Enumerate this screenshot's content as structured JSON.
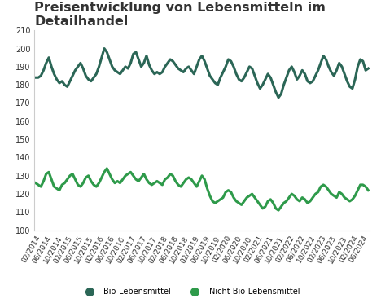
{
  "chart_data": {
    "type": "line",
    "title": "Preisentwicklung von Lebensmitteln im Detailhandel",
    "categories": [
      "02/2014",
      null,
      null,
      null,
      "06/2014",
      null,
      null,
      null,
      "10/2014",
      null,
      null,
      null,
      "02/2015",
      null,
      null,
      null,
      "06/2015",
      null,
      null,
      null,
      "10/2015",
      null,
      null,
      null,
      "02/2016",
      null,
      null,
      null,
      "06/2016",
      null,
      null,
      null,
      "10/2016",
      null,
      null,
      null,
      "02/2017",
      null,
      null,
      null,
      "06/2017",
      null,
      null,
      null,
      "10/2017",
      null,
      null,
      null,
      "02/2018",
      null,
      null,
      null,
      "06/2018",
      null,
      null,
      null,
      "10/2018",
      null,
      null,
      null,
      "02/2019",
      null,
      null,
      null,
      "06/2019",
      null,
      null,
      null,
      "10/2019",
      null,
      null,
      null,
      "02/2020",
      null,
      null,
      null,
      "06/2020",
      null,
      null,
      null,
      "10/2020",
      null,
      null,
      null,
      "02/2021",
      null,
      null,
      null,
      "06/2021",
      null,
      null,
      null,
      "10/2021",
      null,
      null,
      null,
      "02/2022",
      null,
      null,
      null,
      "06/2022",
      null,
      null,
      null,
      "10/2022",
      null,
      null,
      null,
      "02/2023",
      null,
      null,
      null,
      "06/2023",
      null,
      null,
      null,
      "10/2023",
      null,
      null,
      null,
      "02/2024",
      null,
      null,
      null,
      "06/2024",
      null,
      null
    ],
    "series": [
      {
        "name": "Bio-Lebensmittel",
        "color": "#2b6656",
        "values": [
          184,
          184,
          185,
          188,
          192,
          195,
          190,
          186,
          183,
          181,
          182,
          180,
          179,
          182,
          185,
          188,
          190,
          192,
          189,
          185,
          183,
          182,
          184,
          186,
          190,
          195,
          200,
          198,
          194,
          190,
          188,
          187,
          186,
          188,
          190,
          189,
          192,
          197,
          198,
          194,
          190,
          192,
          196,
          191,
          188,
          186,
          187,
          186,
          187,
          190,
          192,
          194,
          193,
          191,
          189,
          188,
          187,
          189,
          190,
          188,
          186,
          190,
          194,
          196,
          193,
          189,
          185,
          183,
          181,
          180,
          184,
          187,
          190,
          194,
          193,
          190,
          186,
          183,
          182,
          184,
          187,
          190,
          189,
          185,
          181,
          178,
          180,
          183,
          186,
          184,
          180,
          176,
          173,
          175,
          180,
          184,
          188,
          190,
          187,
          183,
          185,
          188,
          186,
          182,
          181,
          182,
          185,
          188,
          192,
          196,
          194,
          190,
          187,
          185,
          188,
          192,
          190,
          186,
          182,
          179,
          178,
          183,
          190,
          194,
          193,
          188,
          189
        ]
      },
      {
        "name": "Nicht-Bio-Lebensmittel",
        "color": "#2e9a4a",
        "values": [
          126,
          125,
          124,
          127,
          131,
          132,
          128,
          124,
          123,
          122,
          125,
          126,
          128,
          130,
          131,
          128,
          125,
          124,
          126,
          129,
          130,
          127,
          125,
          124,
          126,
          129,
          132,
          134,
          131,
          128,
          126,
          127,
          126,
          128,
          130,
          131,
          132,
          130,
          128,
          127,
          129,
          131,
          128,
          126,
          125,
          126,
          127,
          126,
          125,
          128,
          129,
          131,
          130,
          127,
          125,
          124,
          126,
          128,
          129,
          128,
          126,
          124,
          127,
          130,
          128,
          123,
          119,
          116,
          115,
          116,
          117,
          118,
          121,
          122,
          121,
          118,
          116,
          115,
          114,
          116,
          118,
          119,
          120,
          118,
          116,
          114,
          112,
          113,
          116,
          117,
          115,
          112,
          111,
          113,
          115,
          116,
          118,
          120,
          119,
          117,
          116,
          118,
          117,
          115,
          116,
          118,
          120,
          121,
          124,
          125,
          124,
          122,
          120,
          119,
          118,
          121,
          120,
          118,
          117,
          116,
          117,
          119,
          122,
          125,
          125,
          124,
          122
        ]
      }
    ],
    "ylim": [
      100,
      210
    ],
    "yticks": [
      100,
      110,
      120,
      130,
      140,
      150,
      160,
      170,
      180,
      190,
      200,
      210
    ],
    "grid": false,
    "legend": "lower center"
  }
}
